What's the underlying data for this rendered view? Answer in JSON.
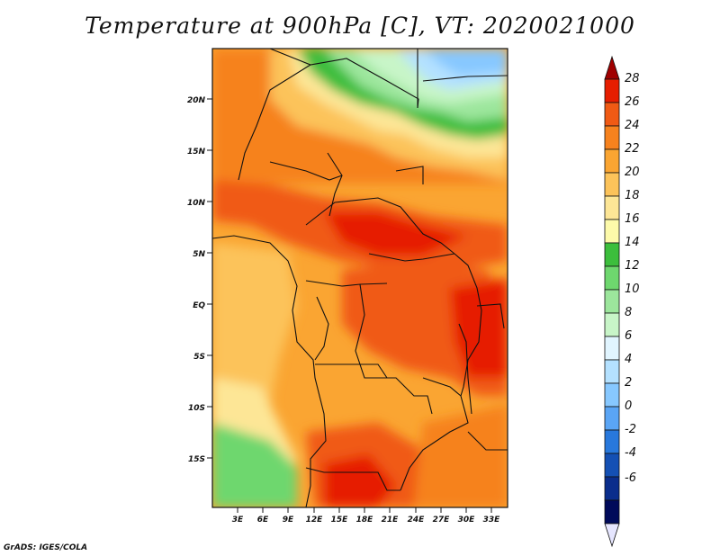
{
  "title": "Temperature at 900hPa [C], VT: 2020021000",
  "credit": "GrADS: IGES/COLA",
  "map": {
    "lat_ticks": [
      "20N",
      "15N",
      "10N",
      "5N",
      "EQ",
      "5S",
      "10S",
      "15S"
    ],
    "lon_ticks": [
      "3E",
      "6E",
      "9E",
      "12E",
      "15E",
      "18E",
      "21E",
      "24E",
      "27E",
      "30E",
      "33E"
    ]
  },
  "colorbar": {
    "labels": [
      "28",
      "26",
      "24",
      "22",
      "20",
      "18",
      "16",
      "14",
      "12",
      "10",
      "8",
      "6",
      "4",
      "2",
      "0",
      "-2",
      "-4",
      "-6"
    ],
    "colors": [
      "#a00000",
      "#e61e00",
      "#f05a14",
      "#f6821e",
      "#faa532",
      "#fcc35a",
      "#fde696",
      "#fdfaaa",
      "#3cbe3c",
      "#6ed76e",
      "#9ce69c",
      "#c8f5c8",
      "#e1f5ff",
      "#b4e1ff",
      "#87c8ff",
      "#5aa5f5",
      "#2878dc",
      "#1450b4",
      "#0a2d8c",
      "#000a5a",
      "#e6e6ff"
    ]
  }
}
